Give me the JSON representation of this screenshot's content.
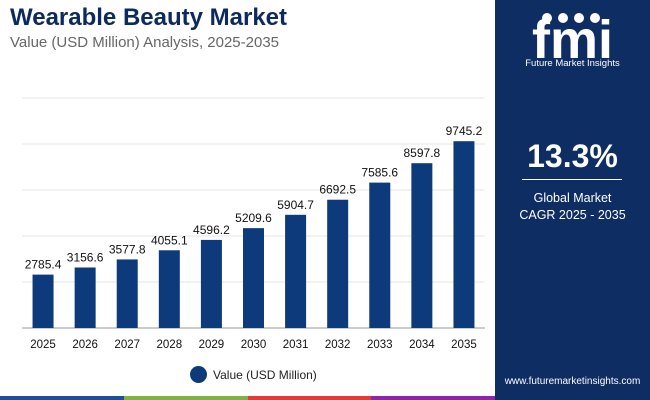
{
  "header": {
    "title": "Wearable Beauty Market",
    "subtitle": "Value (USD Million) Analysis, 2025-2035"
  },
  "chart_data": {
    "type": "bar",
    "title": "Wearable Beauty Market",
    "subtitle": "Value (USD Million) Analysis, 2025-2035",
    "categories": [
      "2025",
      "2026",
      "2027",
      "2028",
      "2029",
      "2030",
      "2031",
      "2032",
      "2033",
      "2034",
      "2035"
    ],
    "series": [
      {
        "name": "Value (USD Million)",
        "values": [
          2785.4,
          3156.6,
          3577.8,
          4055.1,
          4596.2,
          5209.6,
          5904.7,
          6692.5,
          7585.6,
          8597.8,
          9745.2
        ]
      }
    ],
    "value_labels": [
      "2785.4",
      "3156.6",
      "3577.8",
      "4055.1",
      "4596.2",
      "5209.6",
      "5904.7",
      "6692.5",
      "7585.6",
      "8597.8",
      "9745.2"
    ],
    "xlabel": "",
    "ylabel": "",
    "ylim": [
      0,
      12000
    ],
    "grid": true,
    "legend_position": "bottom"
  },
  "legend": {
    "label": "Value (USD Million)"
  },
  "sidebar": {
    "logo_letters": "fmi",
    "logo_text": "Future Market Insights",
    "cagr_value": "13.3%",
    "cagr_label_line1": "Global Market",
    "cagr_label_line2": "CAGR 2025 - 2035",
    "website": "www.futuremarketinsights.com"
  },
  "colors": {
    "bar": "#0d3a7a",
    "title": "#0d2a5c",
    "sidebar": "#0e2d63",
    "strip": [
      "#1f4e9c",
      "#7cb342",
      "#e53935",
      "#8e24aa"
    ]
  }
}
